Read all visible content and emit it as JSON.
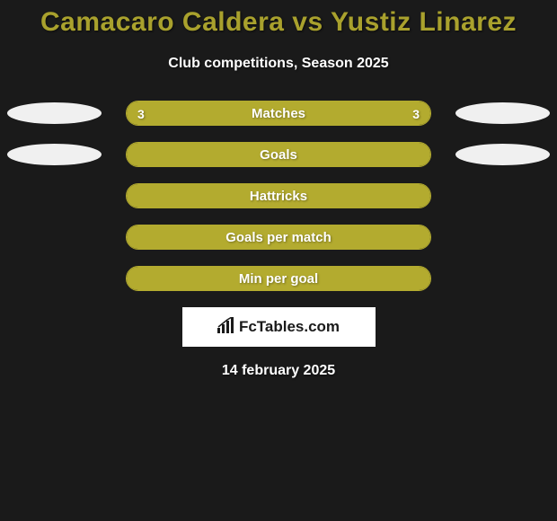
{
  "title": {
    "text": "Camacaro Caldera vs Yustiz Linarez",
    "color": "#a9a12d",
    "fontsize": 30
  },
  "subtitle": "Club competitions, Season 2025",
  "date": "14 february 2025",
  "colors": {
    "background": "#1a1a1a",
    "bar_fill": "#b3ab2f",
    "bar_border": "#b3ab2f",
    "avatar": "#f0f0f0",
    "label_text": "#ffffff"
  },
  "rows": [
    {
      "label": "Matches",
      "left_value": "3",
      "right_value": "3",
      "left_pct": 50,
      "right_pct": 50,
      "show_left_avatar": true,
      "show_right_avatar": true
    },
    {
      "label": "Goals",
      "left_value": "",
      "right_value": "",
      "left_pct": 50,
      "right_pct": 50,
      "show_left_avatar": true,
      "show_right_avatar": true
    },
    {
      "label": "Hattricks",
      "left_value": "",
      "right_value": "",
      "left_pct": 50,
      "right_pct": 50,
      "show_left_avatar": false,
      "show_right_avatar": false
    },
    {
      "label": "Goals per match",
      "left_value": "",
      "right_value": "",
      "left_pct": 50,
      "right_pct": 50,
      "show_left_avatar": false,
      "show_right_avatar": false
    },
    {
      "label": "Min per goal",
      "left_value": "",
      "right_value": "",
      "left_pct": 50,
      "right_pct": 50,
      "show_left_avatar": false,
      "show_right_avatar": false
    }
  ],
  "branding": {
    "label": "FcTables.com"
  }
}
